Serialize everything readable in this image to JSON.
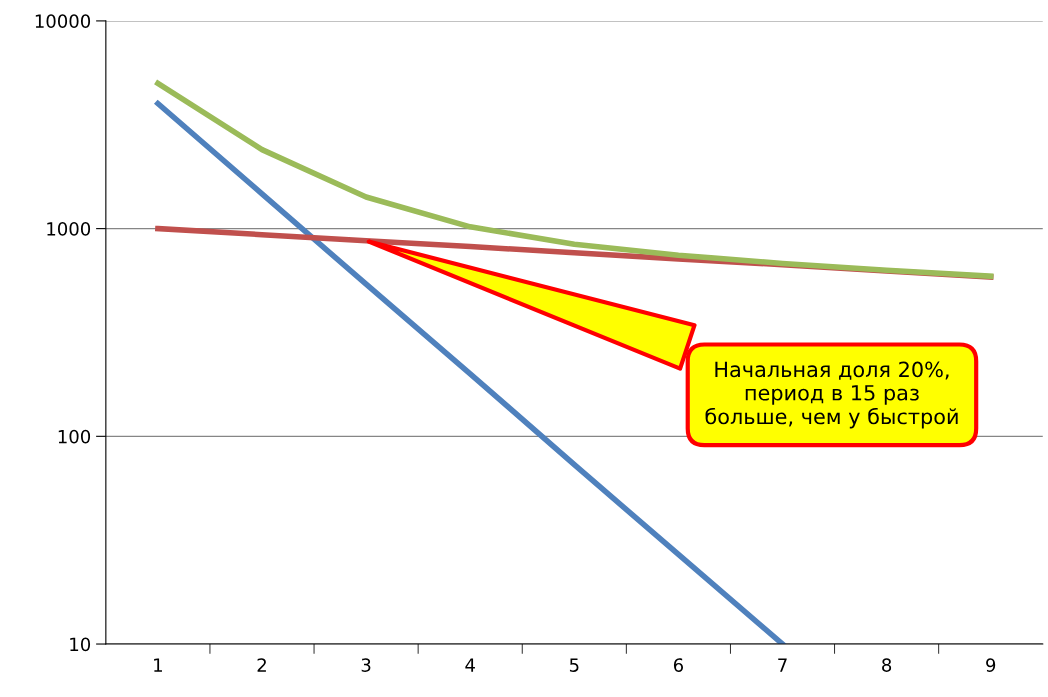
{
  "chart_data": {
    "type": "line",
    "categories": [
      "1",
      "2",
      "3",
      "4",
      "5",
      "6",
      "7",
      "8",
      "9"
    ],
    "series": [
      {
        "color": "#4f81bd",
        "values": [
          4000,
          1470,
          540,
          200,
          73,
          27,
          10,
          null,
          null
        ]
      },
      {
        "color": "#c0504d",
        "values": [
          1000,
          935,
          875,
          820,
          765,
          715,
          670,
          625,
          585
        ]
      },
      {
        "color": "#9bbb59",
        "values": [
          5000,
          2400,
          1420,
          1020,
          840,
          745,
          680,
          630,
          590
        ]
      }
    ],
    "log": "y",
    "ylim": [
      10,
      10000
    ],
    "yticks": [
      10,
      100,
      1000,
      10000
    ],
    "grid": "y",
    "marker": "none",
    "line_style": "solid",
    "legend": false,
    "annotations": [
      {
        "text": "Начальная доля 20%,\nпериод в 15 раз\nбольше, чем у быстрой",
        "x": "3",
        "y": 875
      }
    ]
  }
}
